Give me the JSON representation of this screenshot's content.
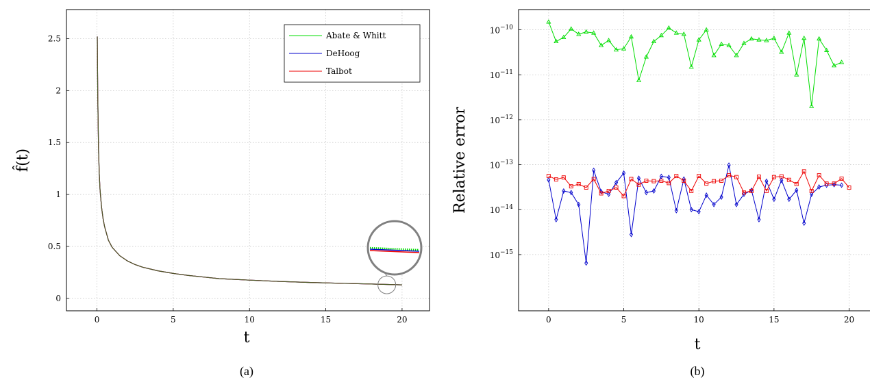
{
  "chart_data": [
    {
      "type": "line",
      "caption": "(a)",
      "xlabel": "t",
      "ylabel": "f̂(t)",
      "xlim": [
        -2,
        21.8
      ],
      "ylim": [
        -0.12,
        2.78
      ],
      "xticks": [
        0,
        5,
        10,
        15,
        20
      ],
      "yticks": [
        0,
        0.5,
        1,
        1.5,
        2,
        2.5
      ],
      "xtick_labels": [
        "0",
        "5",
        "10",
        "15",
        "20"
      ],
      "ytick_labels": [
        "0",
        "0.5",
        "1",
        "1.5",
        "2",
        "2.5"
      ],
      "grid": true,
      "legend_position": "top-right",
      "series": [
        {
          "name": "Abate & Whitt",
          "color": "#00dd00"
        },
        {
          "name": "DeHoog",
          "color": "#0000cc"
        },
        {
          "name": "Talbot",
          "color": "#ee0000"
        }
      ],
      "curve": {
        "x": [
          0.02,
          0.05,
          0.1,
          0.15,
          0.2,
          0.3,
          0.4,
          0.5,
          0.75,
          1,
          1.5,
          2,
          2.5,
          3,
          4,
          5,
          6,
          7,
          8,
          10,
          12,
          14,
          16,
          18,
          20
        ],
        "y": [
          2.52,
          1.95,
          1.45,
          1.2,
          1.05,
          0.88,
          0.77,
          0.69,
          0.56,
          0.49,
          0.41,
          0.36,
          0.325,
          0.3,
          0.265,
          0.24,
          0.22,
          0.205,
          0.19,
          0.175,
          0.163,
          0.153,
          0.145,
          0.138,
          0.13
        ]
      },
      "magnifier": {
        "x": 19,
        "y": 0.13
      }
    },
    {
      "type": "line",
      "caption": "(b)",
      "xlabel": "t",
      "ylabel": "Relative error",
      "yscale": "log",
      "xlim": [
        -2,
        21.8
      ],
      "ylim_exp": [
        -16.25,
        -9.55
      ],
      "xticks": [
        0,
        5,
        10,
        15,
        20
      ],
      "xtick_labels": [
        "0",
        "5",
        "10",
        "15",
        "20"
      ],
      "yticks_exp": [
        -15,
        -14,
        -13,
        -12,
        -11,
        -10
      ],
      "ytick_labels": [
        "10",
        "10",
        "10",
        "10",
        "10",
        "10"
      ],
      "ytick_exponents": [
        "−15",
        "−14",
        "−13",
        "−12",
        "−11",
        "−10"
      ],
      "grid": true,
      "x": [
        0,
        0.5,
        1,
        1.5,
        2,
        2.5,
        3,
        3.5,
        4,
        4.5,
        5,
        5.5,
        6,
        6.5,
        7,
        7.5,
        8,
        8.5,
        9,
        9.5,
        10,
        10.5,
        11,
        11.5,
        12,
        12.5,
        13,
        13.5,
        14,
        14.5,
        15,
        15.5,
        16,
        16.5,
        17,
        17.5,
        18,
        18.5,
        19,
        19.5,
        20
      ],
      "series": [
        {
          "name": "Abate & Whitt",
          "color": "#00dd00",
          "marker": "triangle",
          "values": [
            1.5e-10,
            5.5e-11,
            6.8e-11,
            1.05e-10,
            8e-11,
            9e-11,
            8.5e-11,
            4.5e-11,
            5.8e-11,
            3.6e-11,
            3.8e-11,
            7e-11,
            7.5e-12,
            2.5e-11,
            5.5e-11,
            7.5e-11,
            1.1e-10,
            8.5e-11,
            8e-11,
            1.5e-11,
            6e-11,
            1e-10,
            2.7e-11,
            4.8e-11,
            4.5e-11,
            2.7e-11,
            5e-11,
            6.3e-11,
            6e-11,
            5.8e-11,
            6.5e-11,
            3.2e-11,
            8.5e-11,
            1e-11,
            6.5e-11,
            2e-12,
            6.3e-11,
            3.5e-11,
            1.6e-11,
            1.9e-11,
            null
          ]
        },
        {
          "name": "DeHoog",
          "color": "#0000cc",
          "marker": "diamond",
          "values": [
            4.6e-14,
            6e-15,
            2.6e-14,
            2.4e-14,
            1.3e-14,
            6.5e-16,
            7.5e-14,
            2.5e-14,
            2.2e-14,
            4e-14,
            6.5e-14,
            2.8e-15,
            5e-14,
            2.4e-14,
            2.6e-14,
            5.5e-14,
            5.2e-14,
            9.5e-15,
            4.8e-14,
            1e-14,
            9e-15,
            2.1e-14,
            1.3e-14,
            1.9e-14,
            9.8e-14,
            1.3e-14,
            2.2e-14,
            2.7e-14,
            6e-15,
            4.3e-14,
            1.7e-14,
            4.5e-14,
            1.7e-14,
            2.7e-14,
            5e-15,
            2.2e-14,
            3.2e-14,
            3.5e-14,
            3.6e-14,
            3.5e-14,
            null
          ]
        },
        {
          "name": "Talbot",
          "color": "#ee0000",
          "marker": "square",
          "values": [
            5.6e-14,
            4.7e-14,
            5.2e-14,
            3.3e-14,
            3.7e-14,
            3.1e-14,
            4.8e-14,
            2.3e-14,
            2.6e-14,
            3.1e-14,
            2e-14,
            4.8e-14,
            3.6e-14,
            4.4e-14,
            4.3e-14,
            4.4e-14,
            3.9e-14,
            5.6e-14,
            4.4e-14,
            2.6e-14,
            5.6e-14,
            3.8e-14,
            4.3e-14,
            4.4e-14,
            5.8e-14,
            5.3e-14,
            2.4e-14,
            2.6e-14,
            5.4e-14,
            2.6e-14,
            5.3e-14,
            5.5e-14,
            4.6e-14,
            3.7e-14,
            7.1e-14,
            2.6e-14,
            5.8e-14,
            3.8e-14,
            3.8e-14,
            4.9e-14,
            3.1e-14
          ]
        }
      ]
    }
  ]
}
